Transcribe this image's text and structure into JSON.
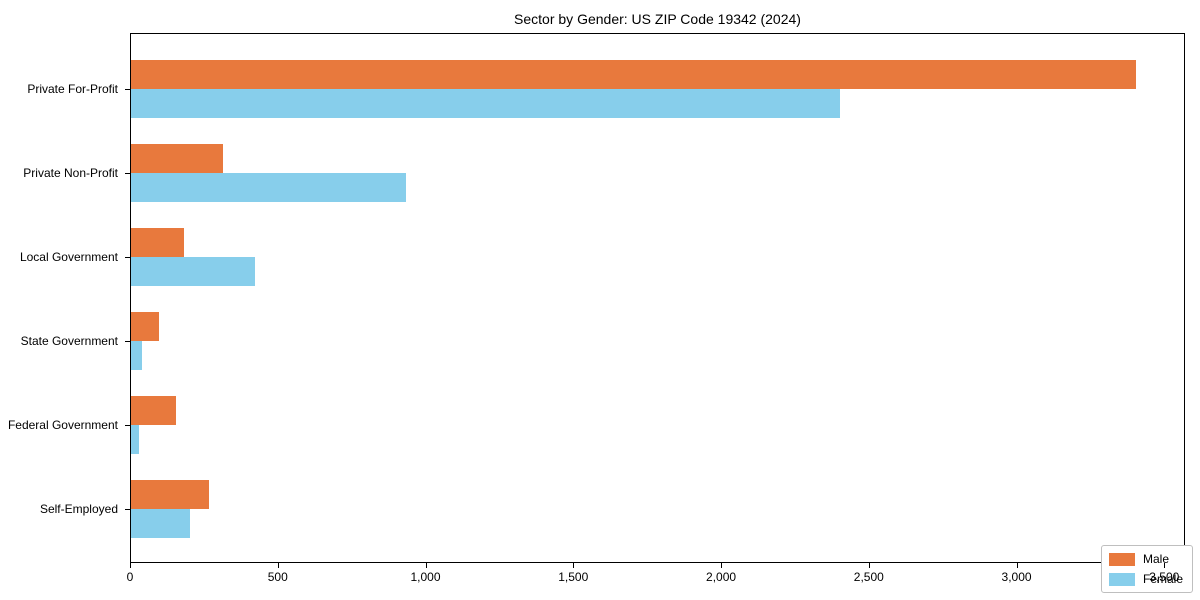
{
  "chart_data": {
    "type": "bar",
    "orientation": "horizontal",
    "title": "Sector by Gender: US ZIP Code 19342 (2024)",
    "categories": [
      "Private For-Profit",
      "Private Non-Profit",
      "Local Government",
      "State Government",
      "Federal Government",
      "Self-Employed"
    ],
    "series": [
      {
        "name": "Male",
        "color": "#e8793d",
        "values": [
          3400,
          313,
          180,
          95,
          152,
          263
        ]
      },
      {
        "name": "Female",
        "color": "#87ceeb",
        "values": [
          2400,
          930,
          420,
          38,
          28,
          198
        ]
      }
    ],
    "xlabel": "",
    "ylabel": "",
    "xlim": [
      0,
      3570
    ],
    "x_ticks": [
      0,
      500,
      1000,
      1500,
      2000,
      2500,
      3000,
      3500
    ],
    "x_tick_labels": [
      "0",
      "500",
      "1,000",
      "1,500",
      "2,000",
      "2,500",
      "3,000",
      "3,500"
    ],
    "grid": false,
    "legend_position": "lower right"
  }
}
